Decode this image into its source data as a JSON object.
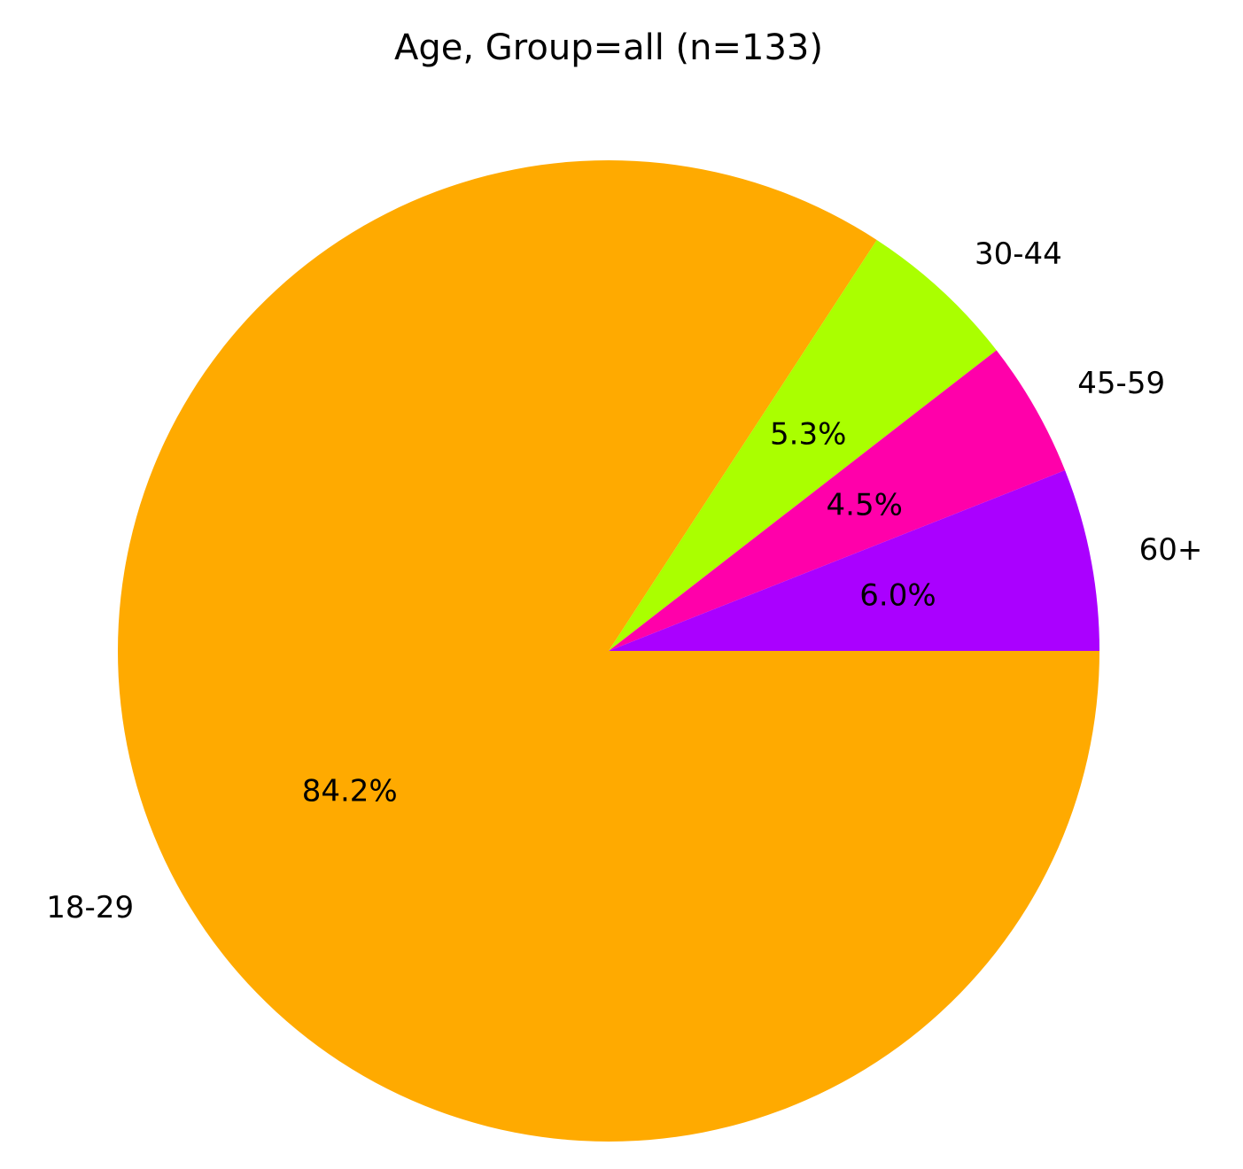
{
  "chart_data": {
    "type": "pie",
    "title": "Age, Group=all (n=133)",
    "start_angle_deg": 0,
    "direction": "clockwise",
    "slices": [
      {
        "label": "18-29",
        "value": 84.2,
        "pct_label": "84.2%",
        "color": "#FFAA00"
      },
      {
        "label": "30-44",
        "value": 5.3,
        "pct_label": "5.3%",
        "color": "#AAFF00"
      },
      {
        "label": "45-59",
        "value": 4.5,
        "pct_label": "4.5%",
        "color": "#FF00AA"
      },
      {
        "label": "60+",
        "value": 6.0,
        "pct_label": "6.0%",
        "color": "#AA00FF"
      }
    ]
  }
}
